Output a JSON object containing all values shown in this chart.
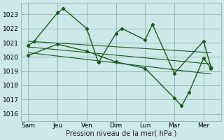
{
  "background_color": "#cce8e8",
  "grid_color": "#99bbbb",
  "line_color": "#1a5c1a",
  "title": "Pression niveau de la mer( hPa )",
  "ylabel_values": [
    1016,
    1017,
    1018,
    1019,
    1020,
    1021,
    1022,
    1023
  ],
  "x_labels": [
    "Sam",
    "Jeu",
    "Ven",
    "Dim",
    "Lun",
    "Mar",
    "Mer"
  ],
  "x_positions": [
    0,
    2,
    4,
    6,
    8,
    10,
    12
  ],
  "line1_x": [
    0,
    0.4,
    2.0,
    2.4,
    4.0,
    4.8,
    6.0,
    6.4,
    8.0,
    8.5,
    10.0,
    12.0,
    12.5
  ],
  "line1_y": [
    1020.8,
    1021.1,
    1023.1,
    1023.4,
    1022.0,
    1019.6,
    1021.65,
    1022.0,
    1021.2,
    1022.3,
    1018.85,
    1021.1,
    1019.3
  ],
  "line2_x": [
    0,
    2.0,
    4.0,
    6.0,
    8.0,
    10.0,
    10.5,
    11.0,
    12.0,
    12.5
  ],
  "line2_y": [
    1020.1,
    1020.9,
    1020.4,
    1019.65,
    1019.2,
    1017.1,
    1016.55,
    1017.5,
    1019.9,
    1019.2
  ],
  "trend1_x": [
    0,
    12.5
  ],
  "trend1_y": [
    1021.1,
    1020.3
  ],
  "trend2_x": [
    0,
    12.5
  ],
  "trend2_y": [
    1020.7,
    1019.5
  ],
  "trend3_x": [
    0,
    12.5
  ],
  "trend3_y": [
    1020.3,
    1018.8
  ],
  "ylim": [
    1015.5,
    1023.8
  ],
  "xlim": [
    -0.5,
    13.2
  ]
}
